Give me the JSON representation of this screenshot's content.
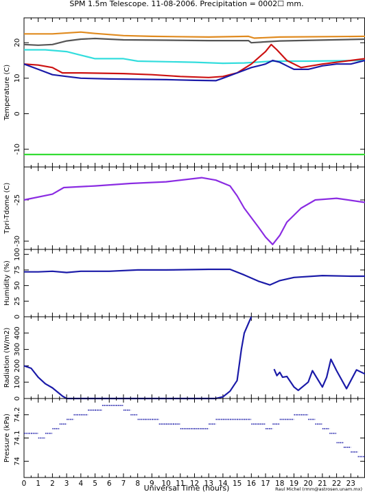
{
  "title": "SPM 1.5m Telescope. 11-08-2006. Precipitation = 0002☐ mm.",
  "xlabel": "Universal Time (hours)",
  "credit": "Raul Michel (rmm@astrosen.unam.mx)",
  "chart_data": [
    {
      "type": "line",
      "ylabel": "Temperature (C)",
      "xlim": [
        0,
        24
      ],
      "ylim": [
        -15,
        27
      ],
      "yticks": [
        -10,
        0,
        10,
        20
      ],
      "series": [
        {
          "color": "#e08a1e",
          "style": "line",
          "x": [
            0,
            2,
            4,
            5,
            7,
            9,
            13,
            15.8,
            16.2,
            18,
            24
          ],
          "y": [
            22.5,
            22.5,
            23,
            22.6,
            22,
            21.8,
            21.6,
            21.8,
            21.3,
            21.6,
            21.8
          ]
        },
        {
          "color": "#555555",
          "style": "line",
          "x": [
            0,
            1,
            2,
            3,
            4,
            5,
            7,
            10,
            13,
            15.8,
            16,
            18,
            24
          ],
          "y": [
            19.5,
            19.3,
            19.5,
            20.5,
            21,
            21.2,
            20.8,
            20.7,
            20.6,
            20.6,
            20,
            20.5,
            21
          ]
        },
        {
          "color": "#33dddd",
          "style": "line",
          "x": [
            0,
            1.5,
            3,
            4,
            5,
            7,
            8,
            12,
            14,
            15.5,
            17.5,
            20,
            24
          ],
          "y": [
            18,
            18,
            17.5,
            16.5,
            15.5,
            15.5,
            14.8,
            14.5,
            14.2,
            14.3,
            14.8,
            14.8,
            15
          ]
        },
        {
          "color": "#cc1111",
          "style": "line",
          "x": [
            0,
            1,
            2,
            2.7,
            4,
            7,
            9,
            11,
            13,
            14,
            15,
            16,
            17,
            17.4,
            17.8,
            18.5,
            19.5,
            21,
            23,
            24
          ],
          "y": [
            14,
            13.7,
            13,
            11.5,
            11.5,
            11.3,
            11,
            10.5,
            10.2,
            10.5,
            11.5,
            14,
            17.5,
            19.5,
            18,
            15,
            13,
            14,
            15,
            15.5
          ]
        },
        {
          "color": "#1a1aa8",
          "style": "line",
          "x": [
            0,
            1,
            2,
            3,
            4,
            6,
            8,
            10,
            12,
            13.5,
            14,
            15,
            16,
            16.5,
            17,
            17.5,
            18,
            18.5,
            19,
            20,
            21,
            22,
            23,
            24
          ],
          "y": [
            14,
            12.5,
            11,
            10.5,
            10,
            9.8,
            9.7,
            9.6,
            9.4,
            9.3,
            10,
            11.5,
            13,
            13.5,
            14,
            15,
            14.5,
            13.5,
            12.5,
            12.5,
            13.5,
            14,
            14,
            15
          ]
        },
        {
          "color": "#33dd33",
          "style": "line",
          "x": [
            0,
            24
          ],
          "y": [
            -11.5,
            -11.5
          ]
        }
      ]
    },
    {
      "type": "line",
      "ylabel": "Tpri-Tdome (C)",
      "xlim": [
        0,
        24
      ],
      "ylim": [
        -31,
        -21
      ],
      "yticks": [
        -30,
        -25
      ],
      "series": [
        {
          "color": "#8a2be2",
          "style": "line",
          "x": [
            0,
            2,
            2.8,
            5,
            7.5,
            10,
            12.5,
            13.5,
            14.5,
            15,
            15.5,
            16.5,
            17,
            17.5,
            18,
            18.5,
            19.5,
            20.5,
            22,
            24
          ],
          "y": [
            -25,
            -24.3,
            -23.5,
            -23.3,
            -23,
            -22.8,
            -22.3,
            -22.6,
            -23.3,
            -24.5,
            -26,
            -28.3,
            -29.5,
            -30.4,
            -29.3,
            -27.7,
            -26,
            -25,
            -24.8,
            -25.3
          ]
        }
      ]
    },
    {
      "type": "line",
      "ylabel": "Humidity (%)",
      "xlim": [
        0,
        24
      ],
      "ylim": [
        0,
        108
      ],
      "yticks": [
        0,
        25,
        50,
        75,
        100
      ],
      "series": [
        {
          "color": "#1a1aa8",
          "style": "line",
          "x": [
            0,
            1,
            2,
            3,
            4,
            6,
            8,
            10,
            13,
            14.5,
            15.5,
            16.5,
            17.3,
            18,
            19,
            21,
            23,
            24
          ],
          "y": [
            72,
            72,
            73,
            71,
            73,
            73,
            75,
            75,
            76,
            76,
            67,
            57,
            51,
            58,
            63,
            66,
            65,
            65
          ]
        }
      ]
    },
    {
      "type": "line",
      "ylabel": "Radiation (W/m2)",
      "xlim": [
        0,
        24
      ],
      "ylim": [
        0,
        500
      ],
      "yticks": [
        0,
        100,
        200,
        300,
        400
      ],
      "series": [
        {
          "color": "#1a1aa8",
          "style": "line",
          "x": [
            0,
            0.5,
            1,
            1.5,
            2,
            2.7,
            3,
            13.5,
            14,
            14.5,
            15,
            15.3,
            15.5,
            15.8,
            16
          ],
          "y": [
            200,
            185,
            130,
            90,
            65,
            15,
            0,
            0,
            10,
            45,
            110,
            300,
            400,
            460,
            500
          ]
        },
        {
          "color": "#1a1aa8",
          "style": "line",
          "x": [
            17.6,
            17.8,
            18,
            18.2,
            18.5,
            19,
            19.3,
            20,
            20.3,
            21,
            21.3,
            21.6,
            22,
            22.7,
            23.4,
            24
          ],
          "y": [
            180,
            140,
            160,
            130,
            135,
            70,
            50,
            100,
            170,
            70,
            130,
            240,
            170,
            60,
            175,
            150
          ]
        }
      ]
    },
    {
      "type": "scatter",
      "ylabel": "Pressure (kPa)",
      "xlim": [
        0,
        24
      ],
      "ylim": [
        73.93,
        74.27
      ],
      "yticks": [
        74,
        74.1,
        74.2
      ],
      "series": [
        {
          "color": "#1a1aa8",
          "style": "steps",
          "x": [
            0,
            0.5,
            1,
            1.5,
            2,
            2.5,
            3,
            3.5,
            4,
            4.5,
            5,
            5.5,
            6,
            6.5,
            7,
            7.5,
            8,
            8.5,
            9,
            9.5,
            10,
            10.5,
            11,
            11.5,
            12,
            12.5,
            13,
            13.5,
            14,
            14.5,
            15,
            15.5,
            16,
            16.5,
            17,
            17.5,
            18,
            18.5,
            19,
            19.5,
            20,
            20.5,
            21,
            21.5,
            22,
            22.5,
            23,
            23.5,
            24
          ],
          "y": [
            74.12,
            74.12,
            74.1,
            74.12,
            74.14,
            74.16,
            74.18,
            74.2,
            74.2,
            74.22,
            74.22,
            74.24,
            74.24,
            74.24,
            74.22,
            74.2,
            74.18,
            74.18,
            74.18,
            74.16,
            74.16,
            74.16,
            74.14,
            74.14,
            74.14,
            74.14,
            74.16,
            74.18,
            74.18,
            74.18,
            74.18,
            74.18,
            74.16,
            74.16,
            74.14,
            74.16,
            74.18,
            74.18,
            74.2,
            74.2,
            74.18,
            74.16,
            74.14,
            74.12,
            74.08,
            74.06,
            74.04,
            74.02,
            73.98
          ]
        }
      ]
    }
  ],
  "xticks": [
    0,
    1,
    2,
    3,
    4,
    5,
    6,
    7,
    8,
    9,
    10,
    11,
    12,
    13,
    14,
    15,
    16,
    17,
    18,
    19,
    20,
    21,
    22,
    23
  ]
}
